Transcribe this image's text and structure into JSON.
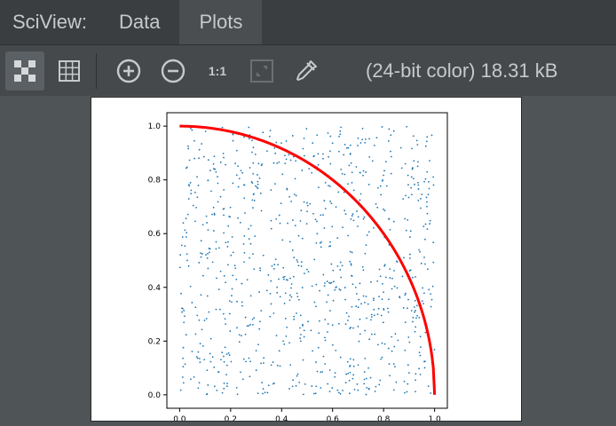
{
  "tabbar": {
    "title": "SciView:",
    "tabs": [
      {
        "label": "Data"
      },
      {
        "label": "Plots",
        "active": true
      }
    ]
  },
  "toolbar": {
    "icons": [
      "checker-icon",
      "grid-icon",
      "zoom-in-icon",
      "zoom-out-icon",
      "actual-size-icon",
      "fit-icon",
      "eyedropper-icon"
    ],
    "actual_size_label": "1:1",
    "status": "(24-bit color) 18.31 kB"
  },
  "colors": {
    "scatter": "#1f77b4",
    "curve": "#ff0000",
    "background": "#4f5457"
  },
  "chart_data": {
    "type": "scatter",
    "title": "",
    "xlabel": "",
    "ylabel": "",
    "xlim": [
      -0.05,
      1.05
    ],
    "ylim": [
      -0.05,
      1.05
    ],
    "xticks": [
      "0.0",
      "0.2",
      "0.4",
      "0.6",
      "0.8",
      "1.0"
    ],
    "yticks": [
      "0.0",
      "0.2",
      "0.4",
      "0.6",
      "0.8",
      "1.0"
    ],
    "grid": false,
    "series": [
      {
        "kind": "scatter",
        "color": "#1f77b4",
        "points": "random-uniform-unit-square",
        "count": 900
      },
      {
        "kind": "line",
        "color": "#ff0000",
        "function": "y = sqrt(1 - x^2)",
        "x_range": [
          0,
          1
        ]
      }
    ]
  }
}
